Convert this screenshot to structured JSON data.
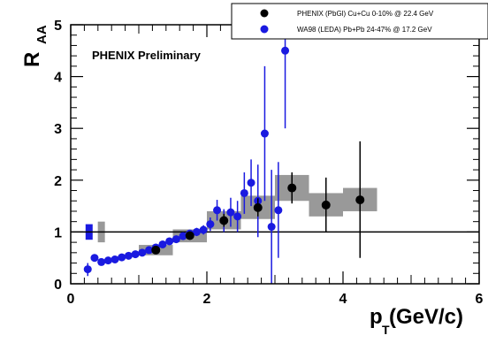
{
  "chart_data": {
    "type": "scatter",
    "title": "",
    "annotation": "PHENIX Preliminary",
    "ylabel": {
      "main": "R",
      "sub": "AA"
    },
    "xlabel": {
      "main": "p",
      "sub": "T",
      "unit": " (GeV/c)"
    },
    "xlim": [
      0,
      6
    ],
    "ylim": [
      0,
      5
    ],
    "xticks": [
      "0",
      "2",
      "4",
      "6"
    ],
    "yticks": [
      "0",
      "1",
      "2",
      "3",
      "4",
      "5"
    ],
    "reference_line_y": 1,
    "legend": {
      "placement": "top-right",
      "entries": [
        {
          "label": "PHENIX (PbGl) Cu+Cu 0-10% @ 22.4 GeV",
          "color": "#000000"
        },
        {
          "label": "WA98 (LEDA)  Pb+Pb 24-47% @ 17.2 GeV",
          "color": "#1a1ae0"
        }
      ]
    },
    "colors": {
      "phenix": "#000000",
      "wa98": "#1a1ae0",
      "sys_band": "#999999"
    },
    "normalization_boxes": [
      {
        "series": "WA98",
        "x": 0.27,
        "ylo": 0.85,
        "yhi": 1.15,
        "color": "#1a1ae0"
      },
      {
        "series": "PHENIX",
        "x": 0.45,
        "ylo": 0.8,
        "yhi": 1.2,
        "color": "#999999"
      }
    ],
    "series": [
      {
        "name": "PHENIX (PbGl) Cu+Cu 0-10% @ 22.4 GeV",
        "points": [
          {
            "x": 1.25,
            "y": 0.65,
            "ylo": 0.6,
            "yhi": 0.7,
            "syslo": 0.55,
            "syshi": 0.75,
            "xw": 0.25
          },
          {
            "x": 1.75,
            "y": 0.93,
            "ylo": 0.88,
            "yhi": 0.98,
            "syslo": 0.8,
            "syshi": 1.05,
            "xw": 0.25
          },
          {
            "x": 2.25,
            "y": 1.22,
            "ylo": 1.1,
            "yhi": 1.35,
            "syslo": 1.05,
            "syshi": 1.4,
            "xw": 0.25
          },
          {
            "x": 2.75,
            "y": 1.47,
            "ylo": 1.3,
            "yhi": 1.65,
            "syslo": 1.25,
            "syshi": 1.7,
            "xw": 0.25
          },
          {
            "x": 3.25,
            "y": 1.85,
            "ylo": 1.55,
            "yhi": 2.15,
            "syslo": 1.6,
            "syshi": 2.1,
            "xw": 0.25
          },
          {
            "x": 3.75,
            "y": 1.52,
            "ylo": 1.0,
            "yhi": 2.05,
            "syslo": 1.3,
            "syshi": 1.75,
            "xw": 0.25
          },
          {
            "x": 4.25,
            "y": 1.62,
            "ylo": 0.5,
            "yhi": 2.75,
            "syslo": 1.4,
            "syshi": 1.85,
            "xw": 0.25
          }
        ]
      },
      {
        "name": "WA98 (LEDA)  Pb+Pb 24-47% @ 17.2 GeV",
        "points": [
          {
            "x": 0.25,
            "y": 0.28,
            "ylo": 0.15,
            "yhi": 0.4
          },
          {
            "x": 0.35,
            "y": 0.5,
            "ylo": 0.45,
            "yhi": 0.55
          },
          {
            "x": 0.45,
            "y": 0.42,
            "ylo": 0.39,
            "yhi": 0.45
          },
          {
            "x": 0.55,
            "y": 0.45,
            "ylo": 0.42,
            "yhi": 0.48
          },
          {
            "x": 0.65,
            "y": 0.47,
            "ylo": 0.44,
            "yhi": 0.5
          },
          {
            "x": 0.75,
            "y": 0.51,
            "ylo": 0.48,
            "yhi": 0.54
          },
          {
            "x": 0.85,
            "y": 0.54,
            "ylo": 0.51,
            "yhi": 0.57
          },
          {
            "x": 0.95,
            "y": 0.57,
            "ylo": 0.54,
            "yhi": 0.6
          },
          {
            "x": 1.05,
            "y": 0.6,
            "ylo": 0.57,
            "yhi": 0.63
          },
          {
            "x": 1.15,
            "y": 0.65,
            "ylo": 0.62,
            "yhi": 0.68
          },
          {
            "x": 1.25,
            "y": 0.7,
            "ylo": 0.66,
            "yhi": 0.74
          },
          {
            "x": 1.35,
            "y": 0.76,
            "ylo": 0.72,
            "yhi": 0.8
          },
          {
            "x": 1.45,
            "y": 0.82,
            "ylo": 0.77,
            "yhi": 0.87
          },
          {
            "x": 1.55,
            "y": 0.86,
            "ylo": 0.8,
            "yhi": 0.92
          },
          {
            "x": 1.65,
            "y": 0.92,
            "ylo": 0.86,
            "yhi": 0.98
          },
          {
            "x": 1.75,
            "y": 0.97,
            "ylo": 0.9,
            "yhi": 1.04
          },
          {
            "x": 1.85,
            "y": 1.0,
            "ylo": 0.92,
            "yhi": 1.08
          },
          {
            "x": 1.95,
            "y": 1.04,
            "ylo": 0.95,
            "yhi": 1.13
          },
          {
            "x": 2.05,
            "y": 1.15,
            "ylo": 1.02,
            "yhi": 1.28
          },
          {
            "x": 2.15,
            "y": 1.42,
            "ylo": 1.22,
            "yhi": 1.62
          },
          {
            "x": 2.25,
            "y": 1.22,
            "ylo": 1.0,
            "yhi": 1.44
          },
          {
            "x": 2.35,
            "y": 1.38,
            "ylo": 1.1,
            "yhi": 1.66
          },
          {
            "x": 2.45,
            "y": 1.3,
            "ylo": 1.0,
            "yhi": 1.6
          },
          {
            "x": 2.55,
            "y": 1.75,
            "ylo": 1.35,
            "yhi": 2.15
          },
          {
            "x": 2.65,
            "y": 1.95,
            "ylo": 1.5,
            "yhi": 2.4
          },
          {
            "x": 2.75,
            "y": 1.6,
            "ylo": 0.9,
            "yhi": 2.3
          },
          {
            "x": 2.85,
            "y": 2.9,
            "ylo": 1.6,
            "yhi": 4.2
          },
          {
            "x": 2.95,
            "y": 1.1,
            "ylo": 0.0,
            "yhi": 2.2
          },
          {
            "x": 3.05,
            "y": 1.42,
            "ylo": 0.5,
            "yhi": 2.35
          },
          {
            "x": 3.15,
            "y": 4.5,
            "ylo": 3.0,
            "yhi": 5.0
          }
        ]
      }
    ]
  }
}
